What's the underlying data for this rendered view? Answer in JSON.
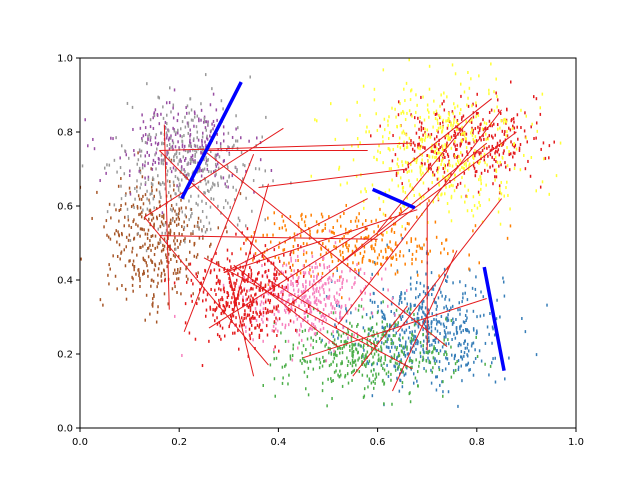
{
  "chart_data": {
    "type": "scatter",
    "title": "",
    "xlabel": "",
    "ylabel": "",
    "xlim": [
      0,
      1
    ],
    "ylim": [
      0,
      1
    ],
    "grid": false,
    "x_ticks": [
      "0.0",
      "0.2",
      "0.4",
      "0.6",
      "0.8",
      "1.0"
    ],
    "y_ticks": [
      "0.0",
      "0.2",
      "0.4",
      "0.6",
      "0.8",
      "1.0"
    ],
    "clusters": [
      {
        "color": "#377eb8",
        "center": [
          0.7,
          0.27
        ],
        "spread": [
          0.075,
          0.08
        ],
        "count": 520
      },
      {
        "color": "#ff7f00",
        "center": [
          0.55,
          0.5
        ],
        "spread": [
          0.11,
          0.045
        ],
        "count": 280
      },
      {
        "color": "#4daf4a",
        "center": [
          0.58,
          0.2
        ],
        "spread": [
          0.085,
          0.05
        ],
        "count": 420
      },
      {
        "color": "#f781bf",
        "center": [
          0.46,
          0.35
        ],
        "spread": [
          0.065,
          0.055
        ],
        "count": 380
      },
      {
        "color": "#a65628",
        "center": [
          0.15,
          0.5
        ],
        "spread": [
          0.055,
          0.095
        ],
        "count": 360
      },
      {
        "color": "#984ea3",
        "center": [
          0.2,
          0.76
        ],
        "spread": [
          0.07,
          0.055
        ],
        "count": 230
      },
      {
        "color": "#999999",
        "center": [
          0.22,
          0.7
        ],
        "spread": [
          0.065,
          0.09
        ],
        "count": 380
      },
      {
        "color": "#e41a1c",
        "center": [
          0.33,
          0.36
        ],
        "spread": [
          0.05,
          0.065
        ],
        "count": 380
      },
      {
        "color": "#e41a1c",
        "center": [
          0.78,
          0.77
        ],
        "spread": [
          0.07,
          0.055
        ],
        "count": 340
      },
      {
        "color": "#ffff33",
        "center": [
          0.73,
          0.76
        ],
        "spread": [
          0.09,
          0.085
        ],
        "count": 460
      }
    ],
    "red_segments": [
      [
        [
          0.16,
          0.75
        ],
        [
          0.67,
          0.77
        ]
      ],
      [
        [
          0.16,
          0.75
        ],
        [
          0.42,
          0.4
        ]
      ],
      [
        [
          0.13,
          0.57
        ],
        [
          0.38,
          0.17
        ]
      ],
      [
        [
          0.13,
          0.57
        ],
        [
          0.41,
          0.81
        ]
      ],
      [
        [
          0.17,
          0.82
        ],
        [
          0.18,
          0.32
        ]
      ],
      [
        [
          0.16,
          0.52
        ],
        [
          0.6,
          0.51
        ]
      ],
      [
        [
          0.21,
          0.26
        ],
        [
          0.35,
          0.74
        ]
      ],
      [
        [
          0.25,
          0.75
        ],
        [
          0.58,
          0.75
        ]
      ],
      [
        [
          0.25,
          0.75
        ],
        [
          0.74,
          0.22
        ]
      ],
      [
        [
          0.3,
          0.27
        ],
        [
          0.38,
          0.66
        ]
      ],
      [
        [
          0.29,
          0.42
        ],
        [
          0.58,
          0.62
        ]
      ],
      [
        [
          0.29,
          0.42
        ],
        [
          0.68,
          0.59
        ]
      ],
      [
        [
          0.26,
          0.27
        ],
        [
          0.58,
          0.54
        ]
      ],
      [
        [
          0.35,
          0.14
        ],
        [
          0.3,
          0.42
        ]
      ],
      [
        [
          0.36,
          0.65
        ],
        [
          0.66,
          0.7
        ]
      ],
      [
        [
          0.31,
          0.44
        ],
        [
          0.52,
          0.22
        ]
      ],
      [
        [
          0.25,
          0.46
        ],
        [
          0.67,
          0.16
        ]
      ],
      [
        [
          0.42,
          0.33
        ],
        [
          0.82,
          0.77
        ]
      ],
      [
        [
          0.45,
          0.19
        ],
        [
          0.82,
          0.35
        ]
      ],
      [
        [
          0.52,
          0.28
        ],
        [
          0.85,
          0.86
        ]
      ],
      [
        [
          0.52,
          0.44
        ],
        [
          0.88,
          0.8
        ]
      ],
      [
        [
          0.64,
          0.26
        ],
        [
          0.85,
          0.62
        ]
      ],
      [
        [
          0.63,
          0.1
        ],
        [
          0.76,
          0.48
        ]
      ],
      [
        [
          0.7,
          0.21
        ],
        [
          0.7,
          0.61
        ]
      ],
      [
        [
          0.66,
          0.71
        ],
        [
          0.83,
          0.89
        ]
      ],
      [
        [
          0.6,
          0.53
        ],
        [
          0.79,
          0.84
        ]
      ],
      [
        [
          0.38,
          0.4
        ],
        [
          0.6,
          0.22
        ]
      ],
      [
        [
          0.55,
          0.14
        ],
        [
          0.66,
          0.33
        ]
      ]
    ],
    "blue_segments": [
      [
        [
          0.205,
          0.62
        ],
        [
          0.325,
          0.935
        ]
      ],
      [
        [
          0.59,
          0.645
        ],
        [
          0.675,
          0.595
        ]
      ],
      [
        [
          0.815,
          0.435
        ],
        [
          0.855,
          0.155
        ]
      ]
    ],
    "segment_colors": {
      "red": "#e41a1c",
      "blue": "#0000ff"
    }
  }
}
